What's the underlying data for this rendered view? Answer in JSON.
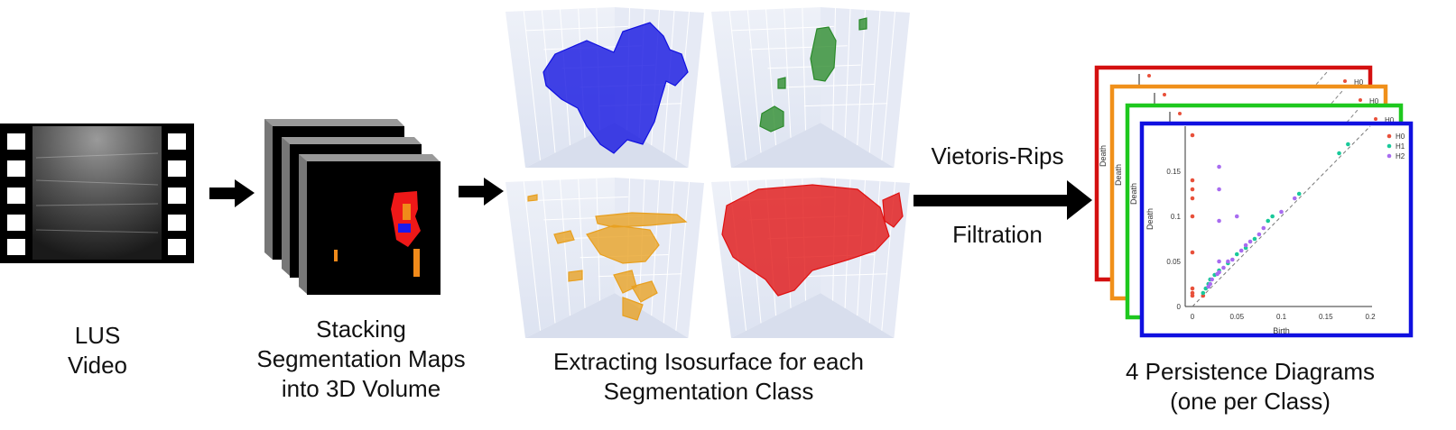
{
  "stages": {
    "video": {
      "lines": [
        "LUS",
        "Video"
      ]
    },
    "stacking": {
      "lines": [
        "Stacking",
        "Segmentation Maps",
        "into 3D Volume"
      ]
    },
    "isosurface": {
      "lines": [
        "Extracting Isosurface for each",
        "Segmentation Class"
      ]
    },
    "filtration": {
      "top": "Vietoris-Rips",
      "bottom": "Filtration"
    },
    "persistence": {
      "lines": [
        "4 Persistence Diagrams",
        "(one per Class)"
      ]
    }
  },
  "isosurface_colors": [
    "#1010e0",
    "#2a8a2a",
    "#e8a020",
    "#e01010"
  ],
  "frame_colors": [
    "#d41010",
    "#f0901a",
    "#1ec81e",
    "#1010e0"
  ],
  "front_diagram": {
    "ylabel": "Death",
    "xlabel": "Birth",
    "back_ylabel": "Death",
    "xticks": [
      "0",
      "0.05",
      "0.1",
      "0.15",
      "0.2"
    ],
    "yticks": [
      "0",
      "0.05",
      "0.1",
      "0.15"
    ],
    "legend": [
      {
        "label": "H0",
        "color": "#e8503a"
      },
      {
        "label": "H1",
        "color": "#19c99a"
      },
      {
        "label": "H2",
        "color": "#a86cf0"
      }
    ],
    "back_legend_label": "H0"
  },
  "chart_data": {
    "type": "scatter",
    "xlabel": "Birth",
    "ylabel": "Death",
    "xlim": [
      0,
      0.2
    ],
    "ylim": [
      0,
      0.2
    ],
    "series": [
      {
        "name": "H0",
        "color": "#e8503a",
        "points": [
          [
            0,
            0.19
          ],
          [
            0,
            0.14
          ],
          [
            0,
            0.13
          ],
          [
            0,
            0.12
          ],
          [
            0,
            0.1
          ],
          [
            0,
            0.06
          ],
          [
            0,
            0.02
          ],
          [
            0,
            0.015
          ],
          [
            0,
            0.012
          ],
          [
            0.012,
            0.012
          ]
        ]
      },
      {
        "name": "H1",
        "color": "#19c99a",
        "points": [
          [
            0.175,
            0.18
          ],
          [
            0.165,
            0.17
          ],
          [
            0.12,
            0.125
          ],
          [
            0.09,
            0.1
          ],
          [
            0.085,
            0.095
          ],
          [
            0.07,
            0.075
          ],
          [
            0.06,
            0.065
          ],
          [
            0.05,
            0.058
          ],
          [
            0.04,
            0.048
          ],
          [
            0.03,
            0.04
          ],
          [
            0.025,
            0.035
          ],
          [
            0.02,
            0.03
          ],
          [
            0.018,
            0.025
          ],
          [
            0.015,
            0.02
          ],
          [
            0.012,
            0.015
          ]
        ]
      },
      {
        "name": "H2",
        "color": "#a86cf0",
        "points": [
          [
            0.03,
            0.155
          ],
          [
            0.03,
            0.13
          ],
          [
            0.03,
            0.095
          ],
          [
            0.05,
            0.1
          ],
          [
            0.03,
            0.05
          ],
          [
            0.115,
            0.12
          ],
          [
            0.1,
            0.105
          ],
          [
            0.08,
            0.087
          ],
          [
            0.065,
            0.072
          ],
          [
            0.055,
            0.062
          ],
          [
            0.045,
            0.052
          ],
          [
            0.035,
            0.043
          ],
          [
            0.028,
            0.036
          ],
          [
            0.022,
            0.03
          ],
          [
            0.02,
            0.025
          ],
          [
            0.018,
            0.022
          ],
          [
            0.04,
            0.05
          ],
          [
            0.06,
            0.068
          ],
          [
            0.075,
            0.08
          ],
          [
            0.03,
            0.038
          ]
        ]
      }
    ]
  }
}
